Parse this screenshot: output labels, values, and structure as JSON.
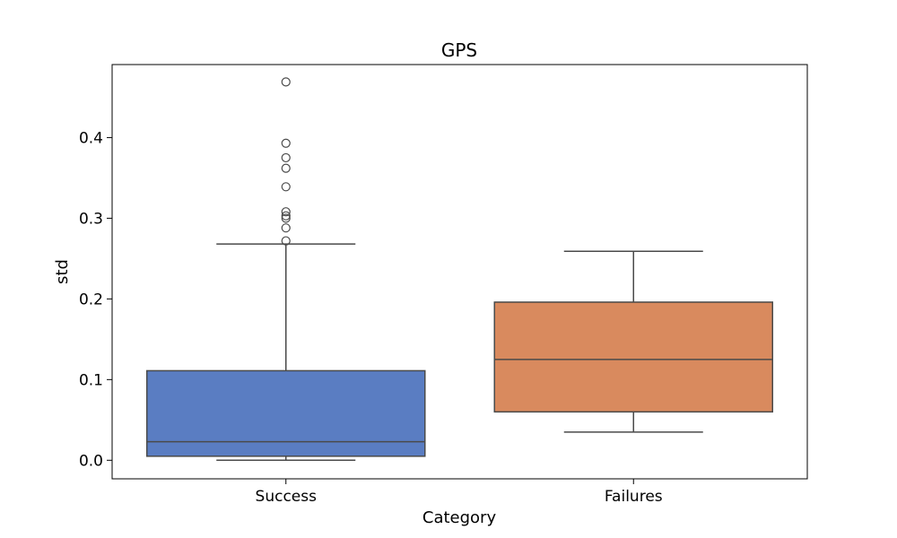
{
  "chart_data": {
    "type": "box",
    "title": "GPS",
    "xlabel": "Category",
    "ylabel": "std",
    "ylim": [
      -0.023,
      0.4905
    ],
    "yticks": [
      0.0,
      0.1,
      0.2,
      0.3,
      0.4
    ],
    "ytick_labels": [
      "0.0",
      "0.1",
      "0.2",
      "0.3",
      "0.4"
    ],
    "grid": false,
    "categories": [
      "Success",
      "Failures"
    ],
    "boxes": [
      {
        "category": "Success",
        "color": "#5a7dc2",
        "whisker_low": 0.0,
        "q1": 0.005,
        "median": 0.023,
        "q3": 0.111,
        "whisker_high": 0.268,
        "outliers": [
          0.272,
          0.288,
          0.3,
          0.303,
          0.308,
          0.339,
          0.362,
          0.375,
          0.393,
          0.469
        ]
      },
      {
        "category": "Failures",
        "color": "#d98a5e",
        "whisker_low": 0.035,
        "q1": 0.06,
        "median": 0.125,
        "q3": 0.196,
        "whisker_high": 0.259,
        "outliers": []
      }
    ],
    "line_color": "#4a4a4a"
  }
}
